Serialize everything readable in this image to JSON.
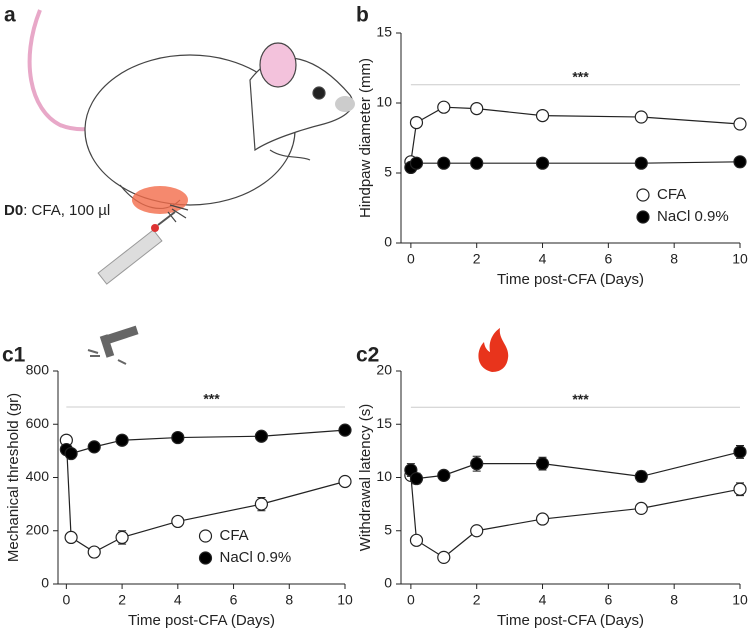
{
  "panel_a": {
    "label": "a",
    "caption_bold": "D0",
    "caption": ": CFA, 100 µl"
  },
  "chart_data": [
    {
      "type": "line",
      "panel": "b",
      "ylabel": "Hindpaw diameter (mm)",
      "xlabel": "Time post-CFA (Days)",
      "x": [
        0,
        0.17,
        1,
        2,
        4,
        7,
        10
      ],
      "series": [
        {
          "name": "CFA",
          "color": "#ffffff",
          "values": [
            5.8,
            8.6,
            9.7,
            9.6,
            9.1,
            9.0,
            8.5
          ]
        },
        {
          "name": "NaCl 0.9%",
          "color": "#000000",
          "values": [
            5.4,
            5.7,
            5.7,
            5.7,
            5.7,
            5.7,
            5.8
          ]
        }
      ],
      "xlim": [
        -0.3,
        10
      ],
      "xticks": [
        0,
        2,
        4,
        6,
        8,
        10
      ],
      "ylim": [
        0,
        15
      ],
      "yticks": [
        0,
        5,
        10,
        15
      ],
      "annotation": "***",
      "annotation_y": 11.3,
      "legend": "lower right"
    },
    {
      "type": "line",
      "panel": "c1",
      "ylabel": "Mechanical threshold (gr)",
      "xlabel": "Time post-CFA (Days)",
      "x": [
        0,
        0.17,
        1,
        2,
        4,
        7,
        10
      ],
      "series": [
        {
          "name": "CFA",
          "color": "#ffffff",
          "values": [
            540,
            175,
            120,
            175,
            235,
            300,
            385
          ],
          "errors": [
            10,
            10,
            10,
            25,
            10,
            25,
            10
          ]
        },
        {
          "name": "NaCl 0.9%",
          "color": "#000000",
          "values": [
            505,
            490,
            515,
            540,
            550,
            555,
            578
          ],
          "errors": [
            10,
            10,
            10,
            10,
            10,
            10,
            10
          ]
        }
      ],
      "xlim": [
        -0.3,
        10
      ],
      "xticks": [
        0,
        2,
        4,
        6,
        8,
        10
      ],
      "ylim": [
        0,
        800
      ],
      "yticks": [
        0,
        200,
        400,
        600,
        800
      ],
      "annotation": "***",
      "annotation_y": 665,
      "legend": "lower center"
    },
    {
      "type": "line",
      "panel": "c2",
      "ylabel": "Withdrawal latency (s)",
      "xlabel": "Time post-CFA (Days)",
      "x": [
        0,
        0.17,
        1,
        2,
        4,
        7,
        10
      ],
      "series": [
        {
          "name": "CFA",
          "color": "#ffffff",
          "values": [
            10.2,
            4.1,
            2.5,
            5.0,
            6.1,
            7.1,
            8.9
          ],
          "errors": [
            0.3,
            0.2,
            0.2,
            0.2,
            0.2,
            0.2,
            0.6
          ]
        },
        {
          "name": "NaCl 0.9%",
          "color": "#000000",
          "values": [
            10.7,
            9.9,
            10.2,
            11.3,
            11.3,
            10.1,
            12.4
          ],
          "errors": [
            0.6,
            0.5,
            0.3,
            0.7,
            0.6,
            0.5,
            0.6
          ]
        }
      ],
      "xlim": [
        -0.3,
        10
      ],
      "xticks": [
        0,
        2,
        4,
        6,
        8,
        10
      ],
      "ylim": [
        0,
        20
      ],
      "yticks": [
        0,
        5,
        10,
        15,
        20
      ],
      "annotation": "***",
      "annotation_y": 16.6
    }
  ]
}
